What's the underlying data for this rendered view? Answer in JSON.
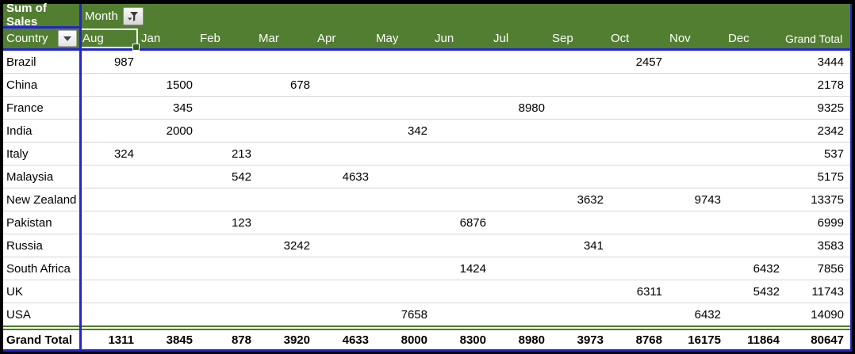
{
  "pivot": {
    "value_field_label": "Sum of Sales",
    "column_field_label": "Month",
    "row_field_label": "Country",
    "active_cell": "Aug",
    "month_columns": [
      "Aug",
      "Jan",
      "Feb",
      "Mar",
      "Apr",
      "May",
      "Jun",
      "Jul",
      "Sep",
      "Oct",
      "Nov",
      "Dec"
    ],
    "grand_total_column_label": "Grand Total",
    "rows": [
      {
        "label": "Brazil",
        "values": [
          "987",
          "",
          "",
          "",
          "",
          "",
          "",
          "",
          "",
          "2457",
          "",
          ""
        ],
        "total": "3444"
      },
      {
        "label": "China",
        "values": [
          "",
          "1500",
          "",
          "678",
          "",
          "",
          "",
          "",
          "",
          "",
          "",
          ""
        ],
        "total": "2178"
      },
      {
        "label": "France",
        "values": [
          "",
          "345",
          "",
          "",
          "",
          "",
          "",
          "8980",
          "",
          "",
          "",
          ""
        ],
        "total": "9325"
      },
      {
        "label": "India",
        "values": [
          "",
          "2000",
          "",
          "",
          "",
          "342",
          "",
          "",
          "",
          "",
          "",
          ""
        ],
        "total": "2342"
      },
      {
        "label": "Italy",
        "values": [
          "324",
          "",
          "213",
          "",
          "",
          "",
          "",
          "",
          "",
          "",
          "",
          ""
        ],
        "total": "537"
      },
      {
        "label": "Malaysia",
        "values": [
          "",
          "",
          "542",
          "",
          "4633",
          "",
          "",
          "",
          "",
          "",
          "",
          ""
        ],
        "total": "5175"
      },
      {
        "label": "New Zealand",
        "values": [
          "",
          "",
          "",
          "",
          "",
          "",
          "",
          "",
          "3632",
          "",
          "9743",
          ""
        ],
        "total": "13375"
      },
      {
        "label": "Pakistan",
        "values": [
          "",
          "",
          "123",
          "",
          "",
          "",
          "6876",
          "",
          "",
          "",
          "",
          ""
        ],
        "total": "6999"
      },
      {
        "label": "Russia",
        "values": [
          "",
          "",
          "",
          "3242",
          "",
          "",
          "",
          "",
          "341",
          "",
          "",
          ""
        ],
        "total": "3583"
      },
      {
        "label": "South Africa",
        "values": [
          "",
          "",
          "",
          "",
          "",
          "",
          "1424",
          "",
          "",
          "",
          "",
          "6432"
        ],
        "total": "7856"
      },
      {
        "label": "UK",
        "values": [
          "",
          "",
          "",
          "",
          "",
          "",
          "",
          "",
          "",
          "6311",
          "",
          "5432"
        ],
        "total": "11743"
      },
      {
        "label": "USA",
        "values": [
          "",
          "",
          "",
          "",
          "",
          "7658",
          "",
          "",
          "",
          "",
          "6432",
          ""
        ],
        "total": "14090"
      }
    ],
    "grand_total_row": {
      "label": "Grand Total",
      "values": [
        "1311",
        "3845",
        "878",
        "3920",
        "4633",
        "8000",
        "8300",
        "8980",
        "3973",
        "8768",
        "16175",
        "11864"
      ],
      "total": "80647"
    }
  },
  "icons": {
    "month_filter": "filter-funnel-icon",
    "country_dropdown": "chevron-down-icon"
  },
  "colors": {
    "header_green": "#527E31",
    "border_blue": "#2424CD",
    "gridline_gray": "#D6D6D6",
    "separator_green": "#4E7A2B",
    "header_text": "#FFFFFF",
    "cell_text": "#000000"
  }
}
